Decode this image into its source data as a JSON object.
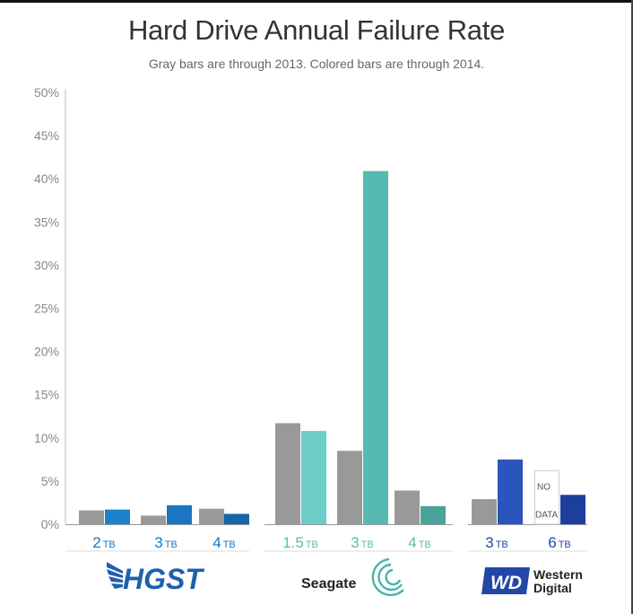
{
  "chart_data": {
    "type": "bar",
    "title": "Hard Drive Annual Failure Rate",
    "subtitle": "Gray bars are through 2013.  Colored bars are through 2014.",
    "ylim": [
      0,
      50
    ],
    "yticks": [
      "0%",
      "5%",
      "10%",
      "15%",
      "20%",
      "25%",
      "30%",
      "35%",
      "40%",
      "45%",
      "50%"
    ],
    "grid": false,
    "unit": "TB",
    "groups": [
      {
        "brand": "HGST",
        "color": "#1478c4",
        "drives": [
          {
            "size": "2",
            "through_2013": 1.6,
            "through_2014": 1.7,
            "color": "#1a82cc"
          },
          {
            "size": "3",
            "through_2013": 1.0,
            "through_2014": 2.2,
            "color": "#1a76c0"
          },
          {
            "size": "4",
            "through_2013": 1.8,
            "through_2014": 1.2,
            "color": "#1566a8"
          }
        ]
      },
      {
        "brand": "Seagate",
        "color": "#5abbb5",
        "drives": [
          {
            "size": "1.5",
            "through_2013": 11.7,
            "through_2014": 10.8,
            "color": "#6cccc8"
          },
          {
            "size": "3",
            "through_2013": 8.5,
            "through_2014": 40.9,
            "color": "#56bab3"
          },
          {
            "size": "4",
            "through_2013": 3.9,
            "through_2014": 2.1,
            "color": "#4aa39a"
          }
        ]
      },
      {
        "brand": "Western Digital",
        "color": "#2247a8",
        "drives": [
          {
            "size": "3",
            "through_2013": 2.9,
            "through_2014": 7.5,
            "color": "#2c54bd"
          },
          {
            "size": "6",
            "through_2013": null,
            "through_2014": 3.4,
            "color": "#1e3e9c"
          }
        ]
      }
    ],
    "no_data_label": [
      "NO",
      "DATA"
    ],
    "gray_color": "#999999"
  },
  "logos": {
    "hgst": "HGST",
    "seagate": "Seagate",
    "wd_mark": "WD",
    "wd_name": [
      "Western",
      "Digital"
    ]
  }
}
